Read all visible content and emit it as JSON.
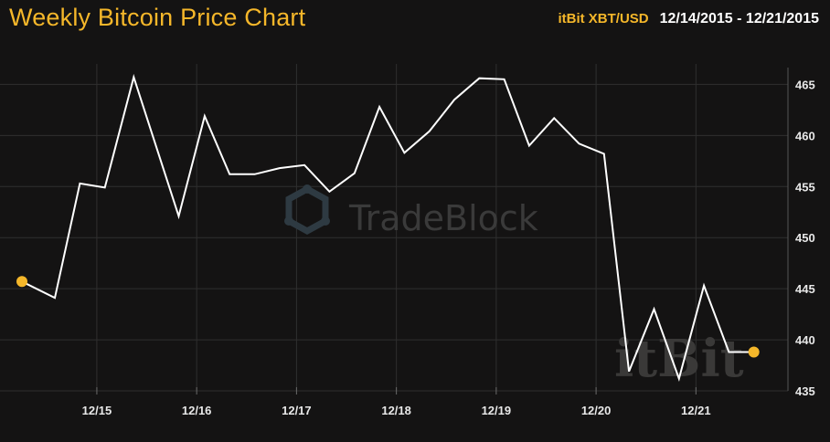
{
  "header": {
    "title": "Weekly Bitcoin Price Chart",
    "pair": "itBit XBT/USD",
    "date_range": "12/14/2015 - 12/21/2015"
  },
  "watermarks": {
    "tradeblock": "TradeBlock",
    "itbit": "itBit"
  },
  "colors": {
    "background": "#141313",
    "accent": "#f5b72a",
    "line": "#ffffff",
    "grid": "#2f2f2f"
  },
  "chart_data": {
    "type": "line",
    "title": "Weekly Bitcoin Price Chart",
    "xlabel": "",
    "ylabel": "",
    "grid": true,
    "y_axis_side": "right",
    "ylim": [
      435,
      467
    ],
    "xlim": [
      0,
      7.58
    ],
    "x_tick_positions": [
      0.75,
      1.75,
      2.75,
      3.75,
      4.75,
      5.75,
      6.75
    ],
    "x_tick_labels": [
      "12/15",
      "12/16",
      "12/17",
      "12/18",
      "12/19",
      "12/20",
      "12/21"
    ],
    "y_ticks": [
      435,
      440,
      445,
      450,
      455,
      460,
      465
    ],
    "series": [
      {
        "x": [
          0.0,
          0.33,
          0.58,
          0.83,
          1.12,
          1.57,
          1.83,
          2.08,
          2.33,
          2.58,
          2.83,
          3.08,
          3.33,
          3.58,
          3.83,
          4.08,
          4.33,
          4.58,
          4.83,
          5.08,
          5.33,
          5.58,
          5.83,
          6.08,
          6.33,
          6.58,
          6.83,
          7.08,
          7.33
        ],
        "y": [
          445.7,
          444.1,
          455.3,
          454.9,
          465.7,
          452.1,
          461.9,
          456.2,
          456.2,
          456.8,
          457.1,
          454.5,
          456.3,
          462.8,
          458.3,
          460.4,
          463.5,
          465.6,
          465.5,
          459.0,
          461.7,
          459.2,
          458.2,
          436.9,
          443.0,
          436.2,
          445.3,
          438.8,
          438.8
        ]
      }
    ],
    "markers": [
      {
        "x": 0.0,
        "y": 445.7
      },
      {
        "x": 7.33,
        "y": 438.8
      }
    ]
  }
}
